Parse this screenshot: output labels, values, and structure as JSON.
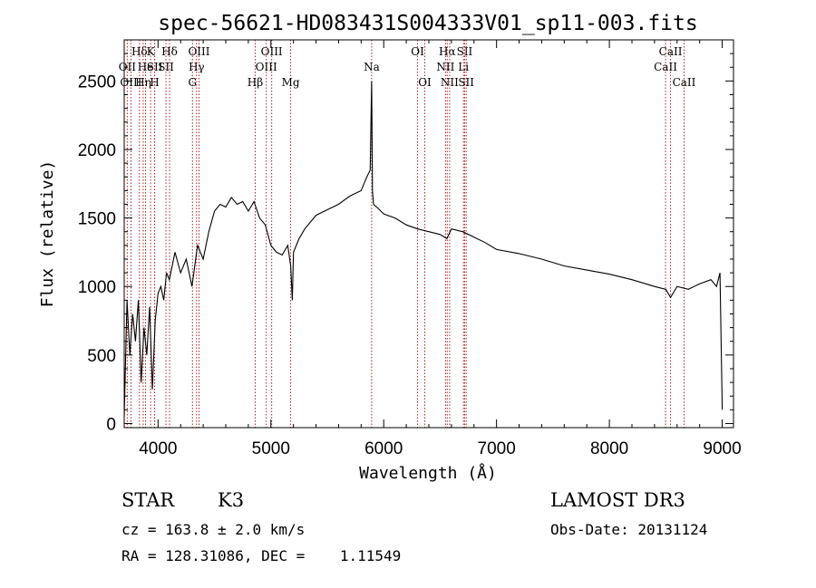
{
  "chart_data": {
    "type": "line",
    "title": "spec-56621-HD083431S004333V01_sp11-003.fits",
    "xlabel": "Wavelength (Å)",
    "ylabel": "Flux (relative)",
    "xlim": [
      3700,
      9100
    ],
    "ylim": [
      -30,
      2800
    ],
    "x_ticks": [
      4000,
      5000,
      6000,
      7000,
      8000,
      9000
    ],
    "y_ticks": [
      0,
      500,
      1000,
      1500,
      2000,
      2500
    ],
    "series": [
      {
        "name": "flux",
        "x": [
          3700,
          3725,
          3750,
          3775,
          3800,
          3825,
          3850,
          3875,
          3900,
          3925,
          3950,
          3975,
          4000,
          4025,
          4050,
          4075,
          4100,
          4150,
          4200,
          4250,
          4300,
          4350,
          4400,
          4450,
          4500,
          4550,
          4600,
          4650,
          4700,
          4750,
          4800,
          4850,
          4900,
          4950,
          5000,
          5050,
          5100,
          5150,
          5175,
          5190,
          5200,
          5250,
          5300,
          5400,
          5500,
          5600,
          5700,
          5800,
          5850,
          5880,
          5893,
          5900,
          5910,
          5950,
          6000,
          6100,
          6200,
          6300,
          6400,
          6500,
          6560,
          6600,
          6700,
          6800,
          6900,
          7000,
          7200,
          7400,
          7600,
          7800,
          8000,
          8200,
          8400,
          8500,
          8542,
          8600,
          8700,
          8800,
          8900,
          8950,
          8980,
          9000
        ],
        "y": [
          50,
          900,
          500,
          800,
          600,
          900,
          300,
          700,
          500,
          850,
          250,
          750,
          950,
          1000,
          900,
          1100,
          1050,
          1250,
          1100,
          1200,
          1000,
          1300,
          1200,
          1400,
          1550,
          1600,
          1580,
          1650,
          1600,
          1620,
          1550,
          1620,
          1500,
          1450,
          1300,
          1250,
          1230,
          1300,
          1150,
          900,
          1250,
          1350,
          1420,
          1520,
          1560,
          1600,
          1660,
          1700,
          1800,
          1850,
          2500,
          1700,
          1600,
          1570,
          1530,
          1500,
          1450,
          1420,
          1400,
          1380,
          1350,
          1420,
          1400,
          1360,
          1320,
          1270,
          1240,
          1200,
          1150,
          1120,
          1090,
          1050,
          1000,
          980,
          920,
          1000,
          980,
          1020,
          1050,
          1000,
          1100,
          100
        ]
      }
    ],
    "line_markers": [
      {
        "label": "Hδ",
        "x": 3835,
        "row": 1
      },
      {
        "label": "OII",
        "x": 3727,
        "row": 2
      },
      {
        "label": "OIII",
        "x": 3760,
        "row": 3
      },
      {
        "label": "He",
        "x": 3889,
        "row": 2
      },
      {
        "label": "Hη",
        "x": 3868,
        "row": 3
      },
      {
        "label": "K",
        "x": 3934,
        "row": 1
      },
      {
        "label": "SII",
        "x": 3970,
        "row": 2
      },
      {
        "label": "H",
        "x": 3969,
        "row": 3
      },
      {
        "label": "Hδ",
        "x": 4102,
        "row": 1
      },
      {
        "label": "SII",
        "x": 4070,
        "row": 2
      },
      {
        "label": "OIII",
        "x": 4363,
        "row": 1
      },
      {
        "label": "Hγ",
        "x": 4341,
        "row": 2
      },
      {
        "label": "G",
        "x": 4305,
        "row": 3
      },
      {
        "label": "Hβ",
        "x": 4861,
        "row": 3
      },
      {
        "label": "OIII",
        "x": 5007,
        "row": 1
      },
      {
        "label": "OIII",
        "x": 4959,
        "row": 2
      },
      {
        "label": "Mg",
        "x": 5175,
        "row": 3
      },
      {
        "label": "Na",
        "x": 5893,
        "row": 2
      },
      {
        "label": "OI",
        "x": 6300,
        "row": 1
      },
      {
        "label": "OI",
        "x": 6364,
        "row": 3
      },
      {
        "label": "Hα",
        "x": 6563,
        "row": 1
      },
      {
        "label": "NII",
        "x": 6548,
        "row": 2
      },
      {
        "label": "NII",
        "x": 6584,
        "row": 3
      },
      {
        "label": "SII",
        "x": 6717,
        "row": 1
      },
      {
        "label": "Li",
        "x": 6707,
        "row": 2
      },
      {
        "label": "SII",
        "x": 6731,
        "row": 3
      },
      {
        "label": "CaII",
        "x": 8542,
        "row": 1
      },
      {
        "label": "CaII",
        "x": 8498,
        "row": 2
      },
      {
        "label": "CaII",
        "x": 8662,
        "row": 3
      }
    ]
  },
  "info": {
    "object_class": "STAR",
    "subclass": "K3",
    "survey": "LAMOST DR3",
    "redshift": "cz = 163.8 ± 2.0 km/s",
    "obs_date": "Obs-Date: 20131124",
    "coords": "RA = 128.31086, DEC =    1.11549"
  }
}
